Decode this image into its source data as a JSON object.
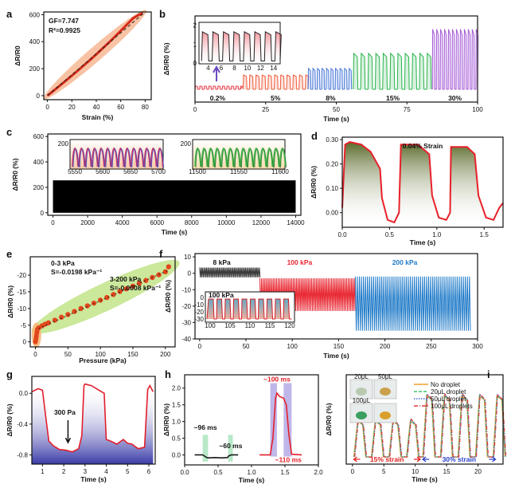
{
  "figure": {
    "panels": [
      "a",
      "b",
      "c",
      "d",
      "e",
      "f",
      "g",
      "h",
      "i"
    ]
  },
  "chart_data": [
    {
      "panel": "a",
      "type": "scatter",
      "xlabel": "Strain (%)",
      "ylabel": "ΔR/R0",
      "xlim": [
        -3,
        85
      ],
      "ylim": [
        -30,
        620
      ],
      "xticks": [
        "0",
        "20",
        "40",
        "60",
        "80"
      ],
      "yticks": [
        "0",
        "200",
        "400",
        "600"
      ],
      "annotations": [
        "GF=7.747",
        "R²=0.9925"
      ],
      "gf": 7.747,
      "x": [
        0,
        5,
        10,
        15,
        20,
        25,
        30,
        35,
        40,
        45,
        50,
        55,
        60,
        65,
        70,
        75,
        78
      ],
      "y": [
        0,
        36,
        73,
        110,
        148,
        186,
        225,
        265,
        306,
        348,
        391,
        435,
        480,
        526,
        572,
        600,
        610
      ],
      "colors": {
        "line": "#d42a1a",
        "band": "#f6b48d"
      }
    },
    {
      "panel": "b",
      "type": "line",
      "xlabel": "Time (s)",
      "ylabel": "ΔR/R0 (%)",
      "xlim": [
        0,
        100
      ],
      "xticks": [
        "0",
        "25",
        "50",
        "75",
        "100"
      ],
      "segments": [
        {
          "label": "0.2%",
          "t0": 0,
          "t1": 16,
          "amp": 0.05,
          "period": 1.6,
          "color": "#e8404d"
        },
        {
          "label": "5%",
          "t0": 17,
          "t1": 40,
          "amp": 0.22,
          "period": 2.2,
          "color": "#ef5a3a"
        },
        {
          "label": "8%",
          "t0": 40,
          "t1": 56,
          "amp": 0.32,
          "period": 1.6,
          "color": "#4a78d8"
        },
        {
          "label": "15%",
          "t0": 56,
          "t1": 84,
          "amp": 0.55,
          "period": 2.6,
          "color": "#28b34b"
        },
        {
          "label": "30%",
          "t0": 84,
          "t1": 100,
          "amp": 0.92,
          "period": 1.4,
          "color": "#a45ad6"
        }
      ],
      "inset": {
        "xticks": [
          "4",
          "6",
          "8",
          "10",
          "12",
          "14"
        ],
        "yticks": [
          "0",
          "1",
          "2"
        ],
        "xlim": [
          2.6,
          15
        ],
        "ylim": [
          0,
          2.2
        ],
        "period": 1.6
      }
    },
    {
      "panel": "c",
      "type": "line",
      "xlabel": "Time (s)",
      "ylabel": "ΔR/R0 (%)",
      "xlim": [
        -300,
        14300
      ],
      "ylim": [
        -20,
        620
      ],
      "xticks": [
        "0",
        "2000",
        "4000",
        "6000",
        "8000",
        "10000",
        "12000",
        "14000"
      ],
      "yticks": [
        "0",
        "200",
        "400",
        "600"
      ],
      "band": {
        "from": 0,
        "to": 255,
        "color": "#000000"
      },
      "insets": [
        {
          "xticks": [
            "5550",
            "5600",
            "5650",
            "5700"
          ],
          "ytick": "200",
          "colors": [
            "#3d56c7",
            "#c4306a"
          ]
        },
        {
          "xticks": [
            "11500",
            "11550",
            "11600"
          ],
          "ytick": "200",
          "colors": [
            "#2a7a35",
            "#43b94a"
          ]
        }
      ]
    },
    {
      "panel": "d",
      "type": "area",
      "xlabel": "Time (s)",
      "ylabel": "ΔR/R0 (%)",
      "xlim": [
        0,
        1.7
      ],
      "ylim": [
        -0.06,
        0.31
      ],
      "xticks": [
        "0.0",
        "0.5",
        "1.0",
        "1.5"
      ],
      "yticks": [
        "0.00",
        "0.10",
        "0.20",
        "0.30"
      ],
      "title_annotation": "0.04% Strain",
      "x": [
        0.0,
        0.03,
        0.08,
        0.2,
        0.3,
        0.4,
        0.42,
        0.48,
        0.55,
        0.6,
        0.62,
        0.8,
        0.92,
        0.95,
        1.02,
        1.1,
        1.14,
        1.15,
        1.32,
        1.4,
        1.44,
        1.52,
        1.6,
        1.66,
        1.7
      ],
      "y": [
        0.02,
        0.28,
        0.29,
        0.28,
        0.25,
        0.18,
        0.06,
        -0.03,
        -0.04,
        0.0,
        0.28,
        0.28,
        0.24,
        0.07,
        -0.02,
        -0.03,
        0.0,
        0.27,
        0.27,
        0.24,
        0.07,
        -0.02,
        -0.03,
        0.02,
        0.04
      ]
    },
    {
      "panel": "e",
      "type": "scatter",
      "xlabel": "Pressure (kPa)",
      "ylabel": "ΔR/R0 (%)",
      "xlim": [
        -8,
        215
      ],
      "ylim": [
        -25.5,
        1.5
      ],
      "xticks": [
        "0",
        "50",
        "100",
        "150",
        "200"
      ],
      "yticks": [
        "0",
        "-5",
        "-10",
        "-15",
        "-20"
      ],
      "annotations": [
        {
          "text": "0-3 kPa"
        },
        {
          "text": "S=-0.0198 kPa⁻¹"
        },
        {
          "text": "3-200 kPa"
        },
        {
          "text": "S=-0.0008 kPa⁻¹"
        }
      ],
      "x": [
        0,
        0.5,
        1,
        1.5,
        2,
        2.5,
        3,
        5,
        10,
        15,
        20,
        30,
        40,
        50,
        60,
        70,
        80,
        90,
        100,
        110,
        120,
        130,
        140,
        150,
        160,
        170,
        180,
        190,
        200,
        205
      ],
      "y": [
        0,
        -0.5,
        -1.2,
        -1.8,
        -2.5,
        -3.2,
        -3.8,
        -4.2,
        -4.8,
        -5.3,
        -5.7,
        -6.5,
        -7.4,
        -8.2,
        -9.1,
        -10.0,
        -10.8,
        -11.6,
        -12.5,
        -13.3,
        -14.2,
        -15.1,
        -15.9,
        -16.7,
        -17.6,
        -18.4,
        -19.3,
        -20.1,
        -21.0,
        -22.5
      ]
    },
    {
      "panel": "f",
      "type": "line",
      "xlabel": "Time (s)",
      "ylabel": "ΔR/R0 (%)",
      "xlim": [
        -5,
        300
      ],
      "ylim": [
        -40,
        12
      ],
      "xticks": [
        "0",
        "50",
        "100",
        "150",
        "200",
        "250",
        "300"
      ],
      "yticks": [
        "10",
        "0",
        "-10",
        "-20",
        "-30",
        "-40"
      ],
      "segments": [
        {
          "label": "8 kPa",
          "t0": 0,
          "t1": 65,
          "low": -2.5,
          "high": 3.5,
          "period": 1.5,
          "color": "#3c3c3c",
          "label_color": "#111111"
        },
        {
          "label": "100 kPa",
          "t0": 65,
          "t1": 168,
          "low": -23,
          "high": -3,
          "period": 1.8,
          "color": "#e8242f",
          "label_color": "#e8242f"
        },
        {
          "label": "200 kPa",
          "t0": 168,
          "t1": 292,
          "low": -35,
          "high": -2,
          "period": 2.2,
          "color": "#1f7ac8",
          "label_color": "#1f7ac8"
        }
      ],
      "inset": {
        "label": "100 kPa",
        "xticks": [
          "100",
          "105",
          "110",
          "115",
          "120"
        ],
        "yticks": [
          "0",
          "-10",
          "-20",
          "-30"
        ]
      }
    },
    {
      "panel": "g",
      "type": "area",
      "xlabel": "Time (s)",
      "ylabel": "ΔR/R0 (%)",
      "xlim": [
        0.5,
        6.3
      ],
      "ylim": [
        -0.92,
        0.22
      ],
      "xticks": [
        "1",
        "2",
        "3",
        "4",
        "5",
        "6"
      ],
      "yticks": [
        "0.0",
        "-0.4",
        "-0.8"
      ],
      "annotation": "300 Pa",
      "x": [
        0.5,
        0.8,
        1.0,
        1.15,
        1.3,
        1.5,
        1.8,
        2.1,
        2.4,
        2.7,
        2.85,
        2.95,
        3.0,
        3.3,
        3.6,
        3.9,
        4.0,
        4.2,
        4.5,
        4.8,
        5.0,
        5.2,
        5.5,
        5.8,
        5.95,
        6.05,
        6.2
      ],
      "y": [
        0.02,
        0.06,
        0.04,
        -0.3,
        -0.62,
        -0.68,
        -0.73,
        -0.74,
        -0.76,
        -0.72,
        -0.55,
        0.1,
        0.12,
        0.1,
        0.05,
        0.0,
        -0.6,
        -0.62,
        -0.66,
        -0.6,
        -0.65,
        -0.66,
        -0.72,
        -0.7,
        0.05,
        0.1,
        0.02
      ]
    },
    {
      "panel": "h",
      "type": "line",
      "xlabel": "Time (s)",
      "ylabel": "ΔR/R0 (%)",
      "xlim": [
        0,
        2.0
      ],
      "ylim": [
        -0.3,
        2.4
      ],
      "xticks": [
        "0.0",
        "0.5",
        "1.0",
        "1.5",
        "2.0"
      ],
      "yticks": [
        "0.0",
        "0.5",
        "1.0",
        "1.5",
        "2.0"
      ],
      "annotations": [
        "~96 ms",
        "~60 ms",
        "~100 ms",
        "~110 ms"
      ],
      "series": [
        {
          "x": [
            0.15,
            0.27,
            0.3,
            0.33,
            0.35,
            0.45,
            0.55,
            0.64,
            0.66,
            0.7,
            0.8
          ],
          "y": [
            0.0,
            0.0,
            -0.04,
            -0.08,
            -0.09,
            -0.08,
            -0.09,
            -0.08,
            -0.03,
            0.0,
            0.0
          ],
          "color": "#1a1a1a"
        },
        {
          "x": [
            1.12,
            1.28,
            1.32,
            1.36,
            1.38,
            1.42,
            1.48,
            1.52,
            1.56,
            1.6,
            1.75
          ],
          "y": [
            0.0,
            0.0,
            0.5,
            1.7,
            1.85,
            1.75,
            1.7,
            1.5,
            0.6,
            0.02,
            0.0
          ],
          "color": "#e2202b"
        }
      ]
    },
    {
      "panel": "i",
      "type": "line",
      "xlabel": "Time (s)",
      "ylabel": "ΔR/R0 (%)",
      "xlim": [
        -1,
        24
      ],
      "ylim": [
        -0.2,
        2.3
      ],
      "xticks": [
        "0",
        "5",
        "10",
        "15",
        "20"
      ],
      "legend": [
        "No droplet",
        "20μL droplet",
        "50μL droplet",
        "100μL droplets"
      ],
      "inset_labels": [
        "20μL",
        "50μL",
        "100μL"
      ],
      "regions": [
        {
          "label": "15% strain",
          "color": "#e02020",
          "t0": 0,
          "t1": 11,
          "amp": 1.0
        },
        {
          "label": "30% strain",
          "color": "#2a40c8",
          "t0": 11,
          "t1": 23,
          "amp": 1.7
        }
      ],
      "colors": [
        "#f3a12a",
        "#3ac66a",
        "#3a6ad8",
        "#e03a3a"
      ]
    }
  ]
}
